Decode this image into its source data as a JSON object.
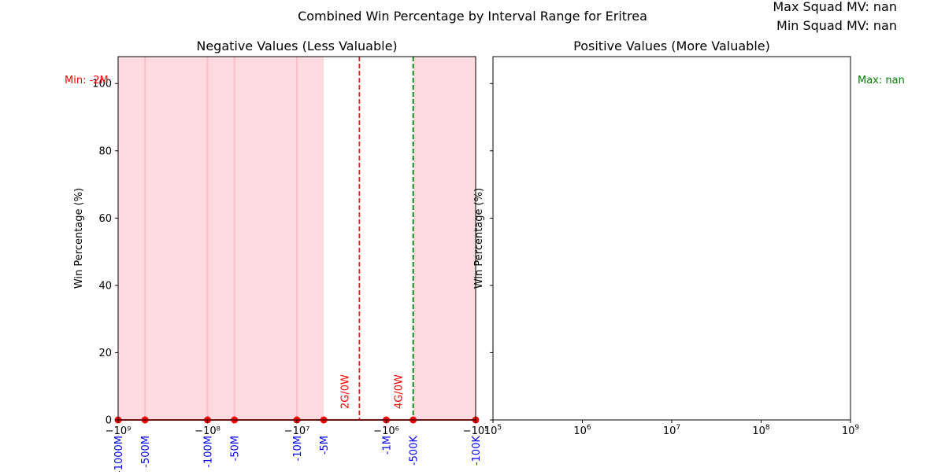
{
  "figure": {
    "suptitle": "Combined Win Percentage by Interval Range for Eritrea",
    "info_max": "Max Squad MV: nan",
    "info_min": "Min Squad MV: nan"
  },
  "colors": {
    "shade": "#ffb6c1",
    "marker": "#ff0000",
    "red_line": "#d62728",
    "green_line": "#008000",
    "tick_label_blue": "#0000ff",
    "annotation_red": "#ff0000",
    "annotation_green": "#008000"
  },
  "chart_data": [
    {
      "type": "scatter",
      "title": "Negative Values (Less Valuable)",
      "ylabel": "Win Percentage (%)",
      "xscale": "symlog (negative)",
      "xlim": [
        -1000000000,
        -100000
      ],
      "ylim": [
        0,
        108
      ],
      "yticks": [
        0,
        20,
        40,
        60,
        80,
        100
      ],
      "xticks_major": [
        {
          "value": -1000000000,
          "label": "−10⁹"
        },
        {
          "value": -100000000,
          "label": "−10⁸"
        },
        {
          "value": -10000000,
          "label": "−10⁷"
        },
        {
          "value": -1000000,
          "label": "−10⁶"
        },
        {
          "value": -100000,
          "label": "−10⁵"
        }
      ],
      "interval_labels": [
        {
          "value": -1000000000,
          "label": "-1000M"
        },
        {
          "value": -500000000,
          "label": "-500M"
        },
        {
          "value": -100000000,
          "label": "-100M"
        },
        {
          "value": -50000000,
          "label": "-50M"
        },
        {
          "value": -10000000,
          "label": "-10M"
        },
        {
          "value": -5000000,
          "label": "-5M"
        },
        {
          "value": -1000000,
          "label": "-1M"
        },
        {
          "value": -500000,
          "label": "-500K"
        },
        {
          "value": -100000,
          "label": "-100K"
        }
      ],
      "shaded_ranges": [
        [
          -1000000000,
          -5000000
        ],
        [
          -500000,
          -100000
        ]
      ],
      "interval_lines": [
        -500000000,
        -100000000,
        -50000000,
        -10000000
      ],
      "points": [
        {
          "x": -1000000000,
          "y": 0
        },
        {
          "x": -500000000,
          "y": 0
        },
        {
          "x": -100000000,
          "y": 0
        },
        {
          "x": -50000000,
          "y": 0
        },
        {
          "x": -10000000,
          "y": 0
        },
        {
          "x": -5000000,
          "y": 0
        },
        {
          "x": -1000000,
          "y": 0
        },
        {
          "x": -500000,
          "y": 0
        },
        {
          "x": -100000,
          "y": 0
        }
      ],
      "vlines": [
        {
          "x": -2000000,
          "color": "red_line",
          "annotation": "2G/0W"
        },
        {
          "x": -500000,
          "color": "green_line",
          "annotation": "4G/0W"
        }
      ],
      "side_annotation": "Min: -2M"
    },
    {
      "type": "scatter",
      "title": "Positive Values (More Valuable)",
      "ylabel": "Win Percentage (%)",
      "xscale": "log",
      "xlim": [
        100000,
        1000000000
      ],
      "ylim": [
        0,
        108
      ],
      "xticks_major": [
        {
          "value": 100000,
          "base": "10",
          "exp": "5"
        },
        {
          "value": 1000000,
          "base": "10",
          "exp": "6"
        },
        {
          "value": 10000000,
          "base": "10",
          "exp": "7"
        },
        {
          "value": 100000000,
          "base": "10",
          "exp": "8"
        },
        {
          "value": 1000000000,
          "base": "10",
          "exp": "9"
        }
      ],
      "points": [],
      "side_annotation": "Max: nan"
    }
  ]
}
